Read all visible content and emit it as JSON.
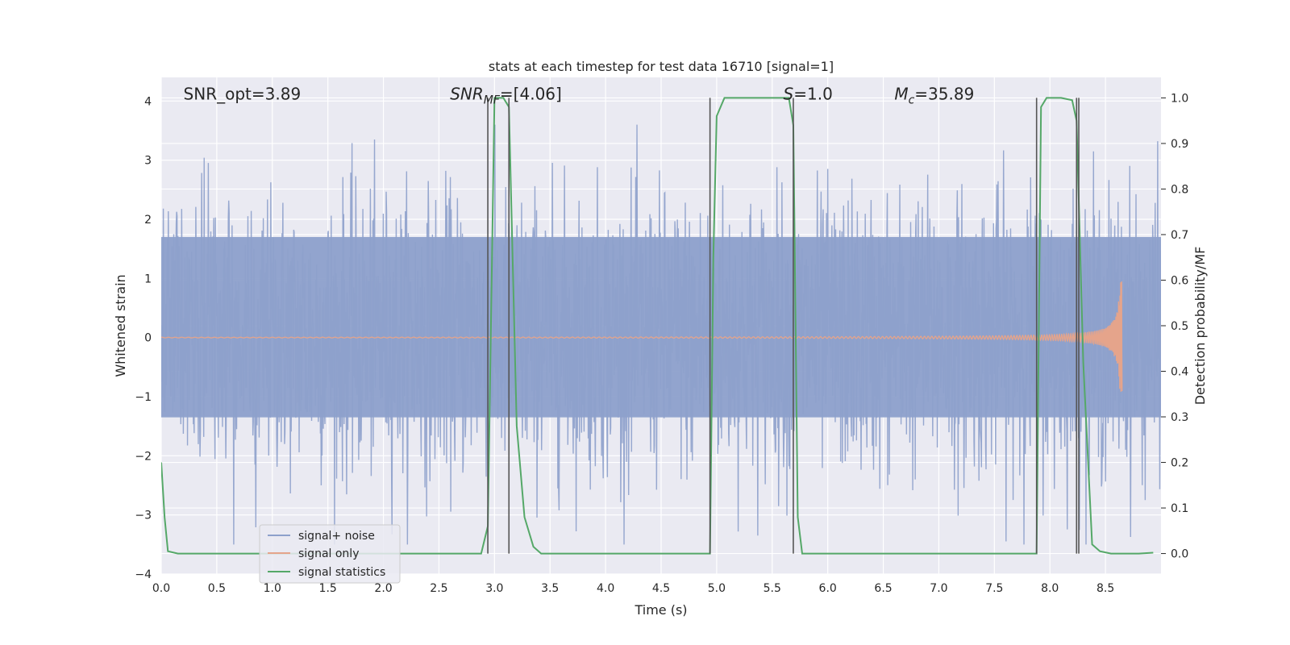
{
  "chart_data": {
    "type": "line",
    "title": "stats at each timestep for test data 16710 [signal=1]",
    "xlabel": "Time (s)",
    "ylabel": "Whitened strain",
    "y2label": "Detection probability/MF",
    "xlim": [
      0.0,
      9.0
    ],
    "ylim": [
      -4.0,
      4.4
    ],
    "y2lim": [
      -0.045,
      1.045
    ],
    "xticks": [
      0.0,
      0.5,
      1.0,
      1.5,
      2.0,
      2.5,
      3.0,
      3.5,
      4.0,
      4.5,
      5.0,
      5.5,
      6.0,
      6.5,
      7.0,
      7.5,
      8.0,
      8.5
    ],
    "xtick_labels": [
      "0.0",
      "0.5",
      "1.0",
      "1.5",
      "2.0",
      "2.5",
      "3.0",
      "3.5",
      "4.0",
      "4.5",
      "5.0",
      "5.5",
      "6.0",
      "6.5",
      "7.0",
      "7.5",
      "8.0",
      "8.5"
    ],
    "yticks": [
      -4,
      -3,
      -2,
      -1,
      0,
      1,
      2,
      3,
      4
    ],
    "ytick_labels": [
      "−4",
      "−3",
      "−2",
      "−1",
      "0",
      "1",
      "2",
      "3",
      "4"
    ],
    "y2ticks": [
      0.0,
      0.1,
      0.2,
      0.3,
      0.4,
      0.5,
      0.6,
      0.7,
      0.8,
      0.9,
      1.0
    ],
    "y2tick_labels": [
      "0.0",
      "0.1",
      "0.2",
      "0.3",
      "0.4",
      "0.5",
      "0.6",
      "0.7",
      "0.8",
      "0.9",
      "1.0"
    ],
    "grid": true,
    "legend_position": "lower-left",
    "annotations": [
      {
        "prefix": "SNR_opt",
        "sub": "",
        "suffix": "=3.89",
        "italic": false,
        "x": 0.2,
        "y": 4.0
      },
      {
        "prefix": "SNR",
        "sub": "MF",
        "suffix": "=[4.06]",
        "italic": true,
        "x": 2.6,
        "y": 4.0
      },
      {
        "prefix": "S",
        "sub": "",
        "suffix": "=1.0",
        "italic": true,
        "x": 5.6,
        "y": 4.0
      },
      {
        "prefix": "M",
        "sub": "c",
        "suffix": "=35.89",
        "italic": true,
        "x": 6.6,
        "y": 4.0
      }
    ],
    "series": [
      {
        "name": "signal+ noise",
        "color": "#8da0cb",
        "axis": "left",
        "kind": "noise",
        "core_range": [
          -1.35,
          1.7
        ],
        "peak_range": [
          -3.5,
          3.6
        ],
        "x_range": [
          0.0,
          9.0
        ]
      },
      {
        "name": "signal only",
        "color": "#e5a48b",
        "axis": "left",
        "kind": "chirp",
        "x_range": [
          0.0,
          8.65
        ],
        "merger_x": 8.65,
        "peak_amplitude": 0.95
      },
      {
        "name": "signal statistics",
        "color": "#55a868",
        "axis": "right",
        "kind": "line",
        "x": [
          0.0,
          0.03,
          0.06,
          0.15,
          1.0,
          2.0,
          2.88,
          2.94,
          3.0,
          3.08,
          3.13,
          3.2,
          3.27,
          3.35,
          3.42,
          4.0,
          4.94,
          4.97,
          5.0,
          5.07,
          5.5,
          5.65,
          5.69,
          5.73,
          5.77,
          6.5,
          7.5,
          7.88,
          7.92,
          7.97,
          8.1,
          8.2,
          8.24,
          8.3,
          8.38,
          8.45,
          8.55,
          8.8,
          8.93
        ],
        "y": [
          0.2,
          0.08,
          0.005,
          0.0,
          0.0,
          0.0,
          0.0,
          0.06,
          1.0,
          1.0,
          0.98,
          0.28,
          0.08,
          0.015,
          0.0,
          0.0,
          0.0,
          0.65,
          0.96,
          1.0,
          1.0,
          1.0,
          0.94,
          0.08,
          0.0,
          0.0,
          0.0,
          0.0,
          0.98,
          1.0,
          1.0,
          0.995,
          0.95,
          0.42,
          0.02,
          0.005,
          0.0,
          0.0,
          0.002
        ]
      }
    ],
    "vertical_lines": [
      {
        "x": 2.94,
        "y2_range": [
          0.0,
          1.0
        ]
      },
      {
        "x": 3.13,
        "y2_range": [
          0.0,
          1.0
        ]
      },
      {
        "x": 4.94,
        "y2_range": [
          0.0,
          1.0
        ]
      },
      {
        "x": 5.69,
        "y2_range": [
          0.0,
          1.0
        ]
      },
      {
        "x": 7.88,
        "y2_range": [
          0.0,
          1.0
        ]
      },
      {
        "x": 8.24,
        "y2_range": [
          0.0,
          1.0
        ]
      },
      {
        "x": 8.26,
        "y2_range": [
          0.0,
          1.0
        ]
      }
    ],
    "colors": {
      "plot_background": "#eaeaf2",
      "grid": "#ffffff",
      "vline": "#555555",
      "text": "#262626"
    }
  }
}
